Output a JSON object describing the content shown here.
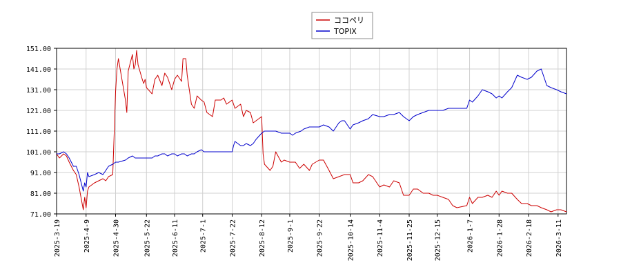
{
  "chart_data": {
    "type": "line",
    "title": "",
    "xlabel": "",
    "ylabel": "",
    "ylim": [
      71.0,
      151.0
    ],
    "y_ticks": [
      "71.00",
      "81.00",
      "91.00",
      "101.00",
      "111.00",
      "121.00",
      "131.00",
      "141.00",
      "151.00"
    ],
    "x_start": "2025-03-19",
    "x_end": "2026-03-17",
    "x_ticks": [
      "2025-3-19",
      "2025-4-9",
      "2025-4-30",
      "2025-5-22",
      "2025-6-11",
      "2025-7-1",
      "2025-7-22",
      "2025-8-12",
      "2025-9-1",
      "2025-9-22",
      "2025-10-14",
      "2025-11-4",
      "2025-11-25",
      "2025-12-15",
      "2026-1-7",
      "2026-1-28",
      "2026-2-18",
      "2026-3-11"
    ],
    "grid": true,
    "legend": "top-center",
    "series": [
      {
        "name": "ココペリ",
        "color": "#cc0000",
        "points": [
          [
            "2025-03-19",
            100
          ],
          [
            "2025-03-21",
            98
          ],
          [
            "2025-03-24",
            100
          ],
          [
            "2025-03-26",
            99
          ],
          [
            "2025-03-28",
            96
          ],
          [
            "2025-03-31",
            92
          ],
          [
            "2025-04-02",
            90
          ],
          [
            "2025-04-04",
            84
          ],
          [
            "2025-04-07",
            73
          ],
          [
            "2025-04-08",
            79
          ],
          [
            "2025-04-09",
            74
          ],
          [
            "2025-04-10",
            82
          ],
          [
            "2025-04-11",
            84
          ],
          [
            "2025-04-15",
            86
          ],
          [
            "2025-04-18",
            87
          ],
          [
            "2025-04-21",
            88
          ],
          [
            "2025-04-23",
            87
          ],
          [
            "2025-04-25",
            89
          ],
          [
            "2025-04-28",
            90
          ],
          [
            "2025-04-29",
            110
          ],
          [
            "2025-04-30",
            130
          ],
          [
            "2025-05-01",
            141
          ],
          [
            "2025-05-02",
            146
          ],
          [
            "2025-05-07",
            126
          ],
          [
            "2025-05-08",
            120
          ],
          [
            "2025-05-09",
            140
          ],
          [
            "2025-05-12",
            148
          ],
          [
            "2025-05-13",
            141
          ],
          [
            "2025-05-14",
            143
          ],
          [
            "2025-05-15",
            150
          ],
          [
            "2025-05-16",
            143
          ],
          [
            "2025-05-19",
            136
          ],
          [
            "2025-05-20",
            134
          ],
          [
            "2025-05-21",
            136
          ],
          [
            "2025-05-22",
            132
          ],
          [
            "2025-05-26",
            129
          ],
          [
            "2025-05-28",
            136
          ],
          [
            "2025-05-30",
            138
          ],
          [
            "2025-06-02",
            133
          ],
          [
            "2025-06-04",
            139
          ],
          [
            "2025-06-06",
            137
          ],
          [
            "2025-06-09",
            131
          ],
          [
            "2025-06-11",
            136
          ],
          [
            "2025-06-13",
            138
          ],
          [
            "2025-06-16",
            135
          ],
          [
            "2025-06-17",
            146
          ],
          [
            "2025-06-19",
            146
          ],
          [
            "2025-06-20",
            138
          ],
          [
            "2025-06-23",
            124
          ],
          [
            "2025-06-25",
            122
          ],
          [
            "2025-06-27",
            128
          ],
          [
            "2025-06-30",
            126
          ],
          [
            "2025-07-02",
            125
          ],
          [
            "2025-07-04",
            120
          ],
          [
            "2025-07-08",
            118
          ],
          [
            "2025-07-10",
            126
          ],
          [
            "2025-07-14",
            126
          ],
          [
            "2025-07-16",
            127
          ],
          [
            "2025-07-18",
            124
          ],
          [
            "2025-07-22",
            126
          ],
          [
            "2025-07-24",
            122
          ],
          [
            "2025-07-28",
            124
          ],
          [
            "2025-07-30",
            118
          ],
          [
            "2025-08-01",
            121
          ],
          [
            "2025-08-04",
            120
          ],
          [
            "2025-08-06",
            115
          ],
          [
            "2025-08-08",
            116
          ],
          [
            "2025-08-12",
            118
          ],
          [
            "2025-08-13",
            100
          ],
          [
            "2025-08-14",
            95
          ],
          [
            "2025-08-18",
            92
          ],
          [
            "2025-08-20",
            94
          ],
          [
            "2025-08-22",
            101
          ],
          [
            "2025-08-26",
            96
          ],
          [
            "2025-08-28",
            97
          ],
          [
            "2025-09-01",
            96
          ],
          [
            "2025-09-05",
            96
          ],
          [
            "2025-09-08",
            93
          ],
          [
            "2025-09-11",
            95
          ],
          [
            "2025-09-15",
            92
          ],
          [
            "2025-09-17",
            95
          ],
          [
            "2025-09-22",
            97
          ],
          [
            "2025-09-25",
            97
          ],
          [
            "2025-09-29",
            92
          ],
          [
            "2025-10-02",
            88
          ],
          [
            "2025-10-06",
            89
          ],
          [
            "2025-10-10",
            90
          ],
          [
            "2025-10-14",
            90
          ],
          [
            "2025-10-16",
            86
          ],
          [
            "2025-10-20",
            86
          ],
          [
            "2025-10-23",
            87
          ],
          [
            "2025-10-27",
            90
          ],
          [
            "2025-10-30",
            89
          ],
          [
            "2025-11-04",
            84
          ],
          [
            "2025-11-07",
            85
          ],
          [
            "2025-11-11",
            84
          ],
          [
            "2025-11-14",
            87
          ],
          [
            "2025-11-18",
            86
          ],
          [
            "2025-11-21",
            80
          ],
          [
            "2025-11-25",
            80
          ],
          [
            "2025-11-28",
            83
          ],
          [
            "2025-12-01",
            83
          ],
          [
            "2025-12-05",
            81
          ],
          [
            "2025-12-09",
            81
          ],
          [
            "2025-12-12",
            80
          ],
          [
            "2025-12-15",
            80
          ],
          [
            "2025-12-19",
            79
          ],
          [
            "2025-12-23",
            78
          ],
          [
            "2025-12-26",
            75
          ],
          [
            "2025-12-29",
            74
          ],
          [
            "2026-01-05",
            75
          ],
          [
            "2026-01-07",
            79
          ],
          [
            "2026-01-09",
            76
          ],
          [
            "2026-01-13",
            79
          ],
          [
            "2026-01-16",
            79
          ],
          [
            "2026-01-20",
            80
          ],
          [
            "2026-01-23",
            79
          ],
          [
            "2026-01-26",
            82
          ],
          [
            "2026-01-28",
            80
          ],
          [
            "2026-01-30",
            82
          ],
          [
            "2026-02-03",
            81
          ],
          [
            "2026-02-06",
            81
          ],
          [
            "2026-02-10",
            78
          ],
          [
            "2026-02-13",
            76
          ],
          [
            "2026-02-17",
            76
          ],
          [
            "2026-02-20",
            75
          ],
          [
            "2026-02-24",
            75
          ],
          [
            "2026-02-27",
            74
          ],
          [
            "2026-03-03",
            73
          ],
          [
            "2026-03-06",
            72
          ],
          [
            "2026-03-10",
            73
          ],
          [
            "2026-03-13",
            73
          ],
          [
            "2026-03-17",
            72
          ]
        ]
      },
      {
        "name": "TOPIX",
        "color": "#0000cc",
        "points": [
          [
            "2025-03-19",
            100
          ],
          [
            "2025-03-21",
            100
          ],
          [
            "2025-03-24",
            101
          ],
          [
            "2025-03-26",
            100
          ],
          [
            "2025-03-28",
            98
          ],
          [
            "2025-03-31",
            94
          ],
          [
            "2025-04-02",
            94
          ],
          [
            "2025-04-04",
            90
          ],
          [
            "2025-04-07",
            82
          ],
          [
            "2025-04-08",
            86
          ],
          [
            "2025-04-09",
            84
          ],
          [
            "2025-04-10",
            91
          ],
          [
            "2025-04-11",
            89
          ],
          [
            "2025-04-15",
            90
          ],
          [
            "2025-04-18",
            91
          ],
          [
            "2025-04-21",
            90
          ],
          [
            "2025-04-23",
            92
          ],
          [
            "2025-04-25",
            94
          ],
          [
            "2025-04-28",
            95
          ],
          [
            "2025-04-30",
            96
          ],
          [
            "2025-05-02",
            96
          ],
          [
            "2025-05-07",
            97
          ],
          [
            "2025-05-09",
            98
          ],
          [
            "2025-05-12",
            99
          ],
          [
            "2025-05-14",
            98
          ],
          [
            "2025-05-16",
            98
          ],
          [
            "2025-05-20",
            98
          ],
          [
            "2025-05-22",
            98
          ],
          [
            "2025-05-26",
            98
          ],
          [
            "2025-05-28",
            99
          ],
          [
            "2025-05-30",
            99
          ],
          [
            "2025-06-02",
            100
          ],
          [
            "2025-06-04",
            100
          ],
          [
            "2025-06-06",
            99
          ],
          [
            "2025-06-09",
            100
          ],
          [
            "2025-06-11",
            100
          ],
          [
            "2025-06-13",
            99
          ],
          [
            "2025-06-16",
            100
          ],
          [
            "2025-06-18",
            100
          ],
          [
            "2025-06-20",
            99
          ],
          [
            "2025-06-23",
            100
          ],
          [
            "2025-06-25",
            100
          ],
          [
            "2025-06-27",
            101
          ],
          [
            "2025-06-30",
            102
          ],
          [
            "2025-07-02",
            101
          ],
          [
            "2025-07-04",
            101
          ],
          [
            "2025-07-08",
            101
          ],
          [
            "2025-07-10",
            101
          ],
          [
            "2025-07-14",
            101
          ],
          [
            "2025-07-16",
            101
          ],
          [
            "2025-07-18",
            101
          ],
          [
            "2025-07-22",
            101
          ],
          [
            "2025-07-23",
            104
          ],
          [
            "2025-07-24",
            106
          ],
          [
            "2025-07-28",
            104
          ],
          [
            "2025-07-30",
            104
          ],
          [
            "2025-08-01",
            105
          ],
          [
            "2025-08-04",
            104
          ],
          [
            "2025-08-06",
            105
          ],
          [
            "2025-08-08",
            107
          ],
          [
            "2025-08-12",
            110
          ],
          [
            "2025-08-14",
            111
          ],
          [
            "2025-08-18",
            111
          ],
          [
            "2025-08-20",
            111
          ],
          [
            "2025-08-22",
            111
          ],
          [
            "2025-08-26",
            110
          ],
          [
            "2025-08-28",
            110
          ],
          [
            "2025-09-01",
            110
          ],
          [
            "2025-09-03",
            109
          ],
          [
            "2025-09-05",
            110
          ],
          [
            "2025-09-09",
            111
          ],
          [
            "2025-09-11",
            112
          ],
          [
            "2025-09-15",
            113
          ],
          [
            "2025-09-17",
            113
          ],
          [
            "2025-09-22",
            113
          ],
          [
            "2025-09-25",
            114
          ],
          [
            "2025-09-29",
            113
          ],
          [
            "2025-10-02",
            111
          ],
          [
            "2025-10-06",
            115
          ],
          [
            "2025-10-08",
            116
          ],
          [
            "2025-10-10",
            116
          ],
          [
            "2025-10-14",
            112
          ],
          [
            "2025-10-16",
            114
          ],
          [
            "2025-10-20",
            115
          ],
          [
            "2025-10-23",
            116
          ],
          [
            "2025-10-27",
            117
          ],
          [
            "2025-10-30",
            119
          ],
          [
            "2025-11-04",
            118
          ],
          [
            "2025-11-07",
            118
          ],
          [
            "2025-11-11",
            119
          ],
          [
            "2025-11-14",
            119
          ],
          [
            "2025-11-18",
            120
          ],
          [
            "2025-11-21",
            118
          ],
          [
            "2025-11-25",
            116
          ],
          [
            "2025-11-28",
            118
          ],
          [
            "2025-12-01",
            119
          ],
          [
            "2025-12-05",
            120
          ],
          [
            "2025-12-09",
            121
          ],
          [
            "2025-12-12",
            121
          ],
          [
            "2025-12-15",
            121
          ],
          [
            "2025-12-19",
            121
          ],
          [
            "2025-12-23",
            122
          ],
          [
            "2025-12-26",
            122
          ],
          [
            "2025-12-29",
            122
          ],
          [
            "2026-01-05",
            122
          ],
          [
            "2026-01-07",
            126
          ],
          [
            "2026-01-09",
            125
          ],
          [
            "2026-01-13",
            128
          ],
          [
            "2026-01-16",
            131
          ],
          [
            "2026-01-20",
            130
          ],
          [
            "2026-01-23",
            129
          ],
          [
            "2026-01-26",
            127
          ],
          [
            "2026-01-28",
            128
          ],
          [
            "2026-01-30",
            127
          ],
          [
            "2026-02-03",
            130
          ],
          [
            "2026-02-06",
            132
          ],
          [
            "2026-02-10",
            138
          ],
          [
            "2026-02-13",
            137
          ],
          [
            "2026-02-17",
            136
          ],
          [
            "2026-02-20",
            137
          ],
          [
            "2026-02-24",
            140
          ],
          [
            "2026-02-27",
            141
          ],
          [
            "2026-03-03",
            133
          ],
          [
            "2026-03-06",
            132
          ],
          [
            "2026-03-10",
            131
          ],
          [
            "2026-03-13",
            130
          ],
          [
            "2026-03-17",
            129
          ]
        ]
      }
    ]
  }
}
